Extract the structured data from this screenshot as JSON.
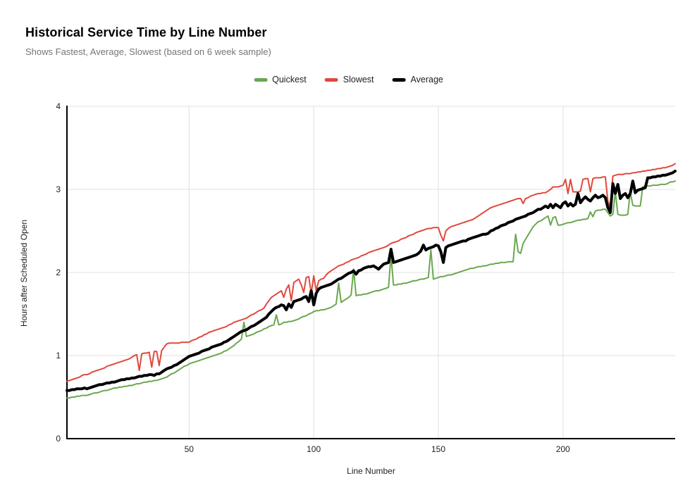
{
  "page": {
    "background": "#ffffff"
  },
  "header": {
    "title": "Historical Service Time by Line Number",
    "subtitle": "Shows Fastest, Average, Slowest (based on 6 week sample)"
  },
  "legend": {
    "position": "top",
    "items": [
      {
        "label": "Quickest",
        "color": "#6aa84f"
      },
      {
        "label": "Slowest",
        "color": "#e0493e"
      },
      {
        "label": "Average",
        "color": "#000000"
      }
    ]
  },
  "chart_data": {
    "type": "line",
    "title": "Historical Service Time by Line Number",
    "subtitle": "Shows Fastest, Average, Slowest (based on 6 week sample)",
    "xlabel": "Line Number",
    "ylabel": "Hours after Scheduled Open",
    "xlim": [
      1,
      245
    ],
    "ylim": [
      0,
      4
    ],
    "x_start": 1,
    "x_step": 1,
    "x_ticks": [
      50,
      100,
      150,
      200
    ],
    "y_ticks": [
      0,
      1,
      2,
      3,
      4
    ],
    "grid": true,
    "gridline_color": "#e0e0e0",
    "axis_color": "#000000",
    "legend_position": "top",
    "series": [
      {
        "name": "Quickest",
        "color": "#6aa84f",
        "width": 2,
        "values": [
          0.49,
          0.49,
          0.5,
          0.5,
          0.51,
          0.51,
          0.52,
          0.52,
          0.52,
          0.53,
          0.54,
          0.55,
          0.55,
          0.56,
          0.57,
          0.58,
          0.58,
          0.59,
          0.6,
          0.61,
          0.61,
          0.62,
          0.62,
          0.63,
          0.63,
          0.64,
          0.64,
          0.65,
          0.66,
          0.66,
          0.67,
          0.68,
          0.68,
          0.69,
          0.69,
          0.7,
          0.7,
          0.71,
          0.72,
          0.73,
          0.74,
          0.76,
          0.78,
          0.79,
          0.81,
          0.83,
          0.85,
          0.87,
          0.88,
          0.9,
          0.91,
          0.92,
          0.93,
          0.94,
          0.95,
          0.96,
          0.97,
          0.98,
          0.99,
          1.0,
          1.01,
          1.02,
          1.03,
          1.05,
          1.06,
          1.08,
          1.1,
          1.12,
          1.15,
          1.17,
          1.2,
          1.4,
          1.23,
          1.24,
          1.25,
          1.26,
          1.28,
          1.29,
          1.3,
          1.32,
          1.33,
          1.35,
          1.36,
          1.37,
          1.49,
          1.37,
          1.38,
          1.4,
          1.4,
          1.41,
          1.41,
          1.42,
          1.43,
          1.44,
          1.46,
          1.47,
          1.48,
          1.5,
          1.51,
          1.53,
          1.54,
          1.54,
          1.55,
          1.55,
          1.56,
          1.57,
          1.58,
          1.6,
          1.62,
          1.87,
          1.64,
          1.66,
          1.68,
          1.7,
          1.73,
          2.04,
          1.72,
          1.73,
          1.73,
          1.74,
          1.74,
          1.75,
          1.76,
          1.77,
          1.78,
          1.78,
          1.79,
          1.8,
          1.81,
          1.82,
          2.21,
          1.85,
          1.85,
          1.86,
          1.86,
          1.87,
          1.87,
          1.88,
          1.89,
          1.9,
          1.9,
          1.91,
          1.92,
          1.92,
          1.93,
          1.94,
          2.27,
          1.92,
          1.93,
          1.94,
          1.95,
          1.95,
          1.96,
          1.97,
          1.97,
          1.98,
          1.99,
          2.0,
          2.01,
          2.02,
          2.03,
          2.04,
          2.05,
          2.05,
          2.06,
          2.07,
          2.07,
          2.08,
          2.08,
          2.09,
          2.1,
          2.1,
          2.11,
          2.11,
          2.12,
          2.12,
          2.12,
          2.13,
          2.13,
          2.13,
          2.46,
          2.25,
          2.23,
          2.35,
          2.4,
          2.45,
          2.5,
          2.55,
          2.58,
          2.61,
          2.62,
          2.64,
          2.66,
          2.68,
          2.57,
          2.66,
          2.67,
          2.57,
          2.57,
          2.58,
          2.59,
          2.6,
          2.6,
          2.61,
          2.62,
          2.63,
          2.63,
          2.64,
          2.64,
          2.65,
          2.73,
          2.67,
          2.74,
          2.75,
          2.75,
          2.76,
          2.76,
          2.72,
          2.68,
          2.7,
          2.97,
          2.7,
          2.69,
          2.69,
          2.69,
          2.7,
          2.97,
          2.81,
          2.8,
          2.8,
          2.8,
          3.03,
          3.04,
          3.04,
          3.04,
          3.05,
          3.05,
          3.05,
          3.06,
          3.06,
          3.06,
          3.07,
          3.09,
          3.09,
          3.1
        ]
      },
      {
        "name": "Slowest",
        "color": "#e0493e",
        "width": 2,
        "values": [
          0.69,
          0.7,
          0.71,
          0.72,
          0.73,
          0.74,
          0.76,
          0.77,
          0.77,
          0.78,
          0.8,
          0.81,
          0.82,
          0.83,
          0.84,
          0.85,
          0.87,
          0.88,
          0.89,
          0.9,
          0.91,
          0.92,
          0.93,
          0.94,
          0.95,
          0.96,
          0.98,
          1.0,
          1.01,
          0.82,
          1.02,
          1.03,
          1.03,
          1.04,
          0.86,
          1.05,
          1.05,
          0.88,
          1.06,
          1.1,
          1.14,
          1.15,
          1.15,
          1.15,
          1.15,
          1.15,
          1.16,
          1.16,
          1.16,
          1.16,
          1.18,
          1.19,
          1.2,
          1.22,
          1.23,
          1.25,
          1.26,
          1.28,
          1.29,
          1.3,
          1.31,
          1.32,
          1.33,
          1.34,
          1.35,
          1.37,
          1.38,
          1.4,
          1.41,
          1.42,
          1.43,
          1.44,
          1.45,
          1.47,
          1.49,
          1.5,
          1.52,
          1.54,
          1.55,
          1.57,
          1.62,
          1.66,
          1.7,
          1.72,
          1.74,
          1.76,
          1.78,
          1.7,
          1.8,
          1.85,
          1.66,
          1.88,
          1.9,
          1.92,
          1.85,
          1.76,
          1.94,
          1.95,
          1.75,
          1.96,
          1.78,
          1.9,
          1.92,
          1.93,
          1.97,
          2.0,
          2.02,
          2.04,
          2.06,
          2.08,
          2.09,
          2.1,
          2.12,
          2.13,
          2.15,
          2.16,
          2.17,
          2.18,
          2.2,
          2.21,
          2.22,
          2.24,
          2.25,
          2.26,
          2.27,
          2.28,
          2.29,
          2.3,
          2.31,
          2.33,
          2.35,
          2.36,
          2.37,
          2.38,
          2.4,
          2.41,
          2.42,
          2.44,
          2.45,
          2.46,
          2.48,
          2.49,
          2.5,
          2.51,
          2.52,
          2.53,
          2.53,
          2.54,
          2.54,
          2.54,
          2.45,
          2.38,
          2.5,
          2.53,
          2.55,
          2.56,
          2.57,
          2.58,
          2.59,
          2.6,
          2.61,
          2.62,
          2.63,
          2.64,
          2.66,
          2.68,
          2.7,
          2.72,
          2.74,
          2.76,
          2.78,
          2.79,
          2.8,
          2.81,
          2.82,
          2.83,
          2.84,
          2.85,
          2.86,
          2.87,
          2.88,
          2.89,
          2.89,
          2.83,
          2.89,
          2.9,
          2.92,
          2.93,
          2.94,
          2.95,
          2.95,
          2.96,
          2.96,
          2.98,
          3.0,
          3.03,
          3.03,
          3.03,
          3.04,
          3.05,
          3.12,
          2.95,
          3.12,
          2.97,
          2.97,
          2.97,
          2.98,
          3.12,
          3.13,
          3.13,
          2.97,
          3.13,
          3.14,
          3.14,
          3.14,
          3.15,
          3.15,
          2.86,
          2.78,
          3.16,
          3.17,
          3.18,
          3.18,
          3.18,
          3.19,
          3.19,
          3.19,
          3.2,
          3.2,
          3.21,
          3.21,
          3.22,
          3.22,
          3.23,
          3.23,
          3.24,
          3.24,
          3.25,
          3.25,
          3.26,
          3.26,
          3.27,
          3.28,
          3.29,
          3.31
        ]
      },
      {
        "name": "Average",
        "color": "#000000",
        "width": 4,
        "values": [
          0.58,
          0.58,
          0.59,
          0.59,
          0.6,
          0.6,
          0.6,
          0.61,
          0.6,
          0.61,
          0.62,
          0.63,
          0.64,
          0.65,
          0.65,
          0.66,
          0.67,
          0.67,
          0.68,
          0.68,
          0.69,
          0.7,
          0.71,
          0.71,
          0.72,
          0.72,
          0.73,
          0.73,
          0.74,
          0.75,
          0.75,
          0.76,
          0.76,
          0.77,
          0.77,
          0.76,
          0.78,
          0.78,
          0.8,
          0.82,
          0.84,
          0.85,
          0.86,
          0.88,
          0.89,
          0.91,
          0.93,
          0.95,
          0.97,
          0.99,
          1.0,
          1.01,
          1.02,
          1.03,
          1.05,
          1.06,
          1.07,
          1.08,
          1.1,
          1.11,
          1.12,
          1.13,
          1.14,
          1.16,
          1.17,
          1.19,
          1.21,
          1.23,
          1.25,
          1.27,
          1.29,
          1.3,
          1.31,
          1.33,
          1.35,
          1.36,
          1.38,
          1.4,
          1.42,
          1.44,
          1.46,
          1.5,
          1.53,
          1.56,
          1.58,
          1.59,
          1.61,
          1.6,
          1.55,
          1.62,
          1.58,
          1.65,
          1.66,
          1.67,
          1.68,
          1.7,
          1.71,
          1.65,
          1.78,
          1.61,
          1.75,
          1.8,
          1.82,
          1.83,
          1.84,
          1.85,
          1.86,
          1.88,
          1.9,
          1.92,
          1.93,
          1.95,
          1.97,
          1.99,
          2.0,
          2.02,
          1.98,
          2.02,
          2.03,
          2.05,
          2.06,
          2.07,
          2.07,
          2.08,
          2.06,
          2.04,
          2.07,
          2.1,
          2.11,
          2.12,
          2.28,
          2.12,
          2.13,
          2.14,
          2.15,
          2.16,
          2.17,
          2.18,
          2.19,
          2.2,
          2.21,
          2.23,
          2.26,
          2.33,
          2.27,
          2.29,
          2.3,
          2.31,
          2.33,
          2.32,
          2.25,
          2.12,
          2.3,
          2.32,
          2.33,
          2.34,
          2.35,
          2.36,
          2.37,
          2.38,
          2.38,
          2.4,
          2.41,
          2.42,
          2.43,
          2.44,
          2.45,
          2.46,
          2.46,
          2.47,
          2.5,
          2.51,
          2.53,
          2.54,
          2.56,
          2.57,
          2.58,
          2.6,
          2.61,
          2.62,
          2.64,
          2.65,
          2.66,
          2.67,
          2.68,
          2.7,
          2.71,
          2.72,
          2.74,
          2.76,
          2.76,
          2.78,
          2.8,
          2.78,
          2.82,
          2.78,
          2.82,
          2.8,
          2.78,
          2.83,
          2.85,
          2.8,
          2.83,
          2.8,
          2.82,
          2.95,
          2.84,
          2.88,
          2.91,
          2.88,
          2.86,
          2.9,
          2.93,
          2.9,
          2.91,
          2.93,
          2.9,
          2.78,
          2.72,
          3.07,
          2.95,
          3.06,
          2.89,
          2.93,
          2.95,
          2.9,
          2.95,
          3.1,
          2.96,
          2.99,
          3.0,
          3.01,
          3.02,
          3.14,
          3.14,
          3.15,
          3.15,
          3.16,
          3.16,
          3.17,
          3.17,
          3.18,
          3.19,
          3.2,
          3.22
        ]
      }
    ]
  }
}
